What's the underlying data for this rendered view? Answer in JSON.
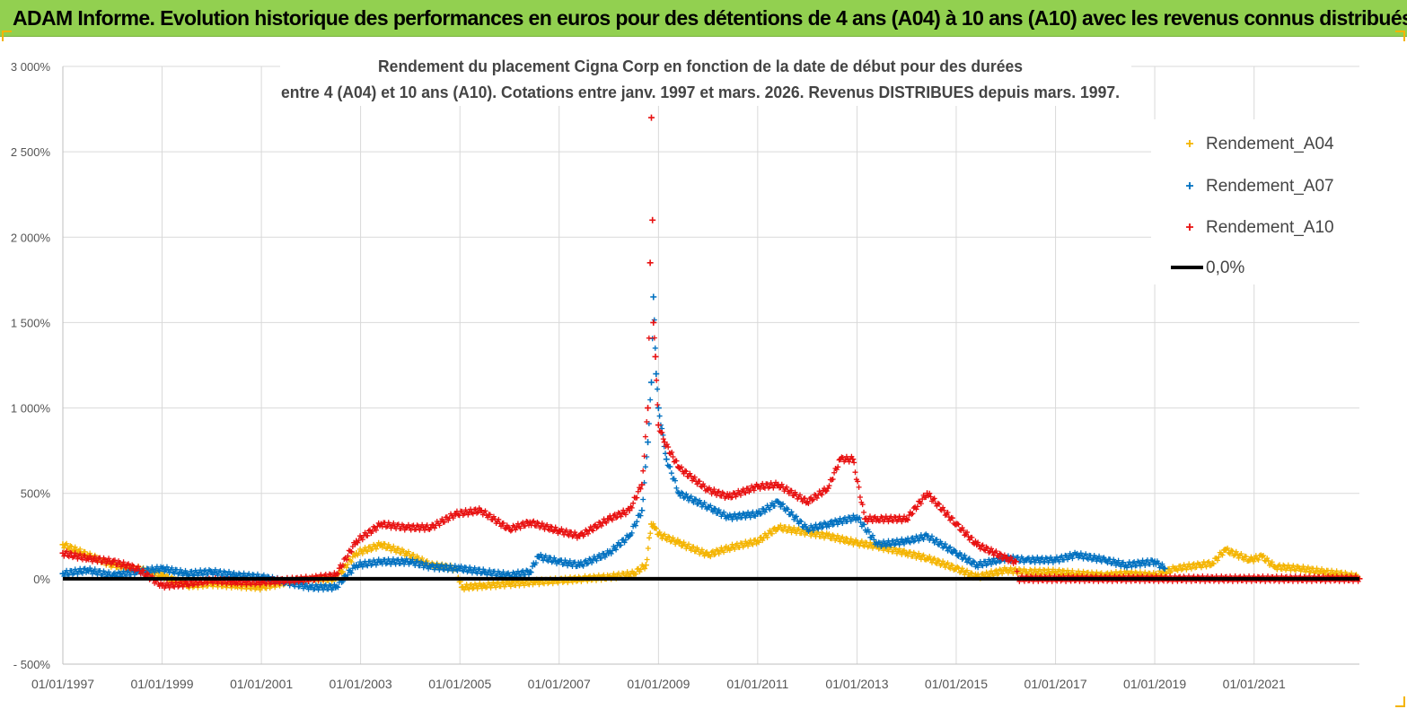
{
  "banner": {
    "title": "ADAM Informe. Evolution historique des performances en euros pour des détentions de 4 ans (A04) à 10 ans (A10) avec les revenus connus distribués"
  },
  "colors": {
    "banner_bg": "#92d050",
    "A04": "#f4b400",
    "A07": "#0070c0",
    "A10": "#e81010",
    "zero_line": "#000000",
    "grid": "#d9d9d9"
  },
  "chart_data": {
    "type": "scatter",
    "title_lines": [
      "Rendement du placement Cigna Corp en fonction de la date de début pour des durées",
      "entre 4 (A04) et 10 ans (A10). Cotations entre janv. 1997 et mars. 2026. Revenus DISTRIBUES depuis mars. 1997."
    ],
    "x_type": "date",
    "x_range": [
      "1997-01-01",
      "2023-02-15"
    ],
    "x_ticks": [
      "01/01/1997",
      "01/01/1999",
      "01/01/2001",
      "01/01/2003",
      "01/01/2005",
      "01/01/2007",
      "01/01/2009",
      "01/01/2011",
      "01/01/2013",
      "01/01/2015",
      "01/01/2017",
      "01/01/2019",
      "01/01/2021"
    ],
    "y_range": [
      -500,
      3000
    ],
    "y_ticks": [
      -500,
      0,
      500,
      1000,
      1500,
      2000,
      2500,
      3000
    ],
    "y_tick_labels": [
      "- 500%",
      "0%",
      "500%",
      "1 000%",
      "1 500%",
      "2 000%",
      "2 500%",
      "3 000%"
    ],
    "y_unit": "%",
    "grid": "vertical and horizontal",
    "legend_position": "top-right",
    "series": [
      {
        "name": "Rendement_A04",
        "marker": "plus",
        "color": "#f4b400",
        "x": [
          "1997-01-01",
          "1997-07-01",
          "1998-01-01",
          "1998-07-01",
          "1999-01-01",
          "1999-07-01",
          "2000-01-01",
          "2000-07-01",
          "2001-01-01",
          "2001-07-01",
          "2002-01-01",
          "2002-07-01",
          "2002-12-01",
          "2003-06-01",
          "2003-12-01",
          "2004-06-01",
          "2004-12-01",
          "2005-01-15",
          "2005-07-01",
          "2006-01-01",
          "2006-07-01",
          "2007-01-01",
          "2007-07-01",
          "2008-01-01",
          "2008-07-01",
          "2008-10-01",
          "2008-11-10",
          "2008-12-01",
          "2009-01-01",
          "2009-06-01",
          "2010-01-01",
          "2010-06-01",
          "2011-01-01",
          "2011-06-01",
          "2012-01-01",
          "2012-06-01",
          "2013-01-01",
          "2013-06-01",
          "2014-01-01",
          "2014-06-01",
          "2015-01-01",
          "2015-06-01",
          "2016-01-01",
          "2016-06-01",
          "2017-01-01",
          "2017-06-01",
          "2018-01-01",
          "2018-06-01",
          "2019-01-01",
          "2019-06-01",
          "2019-12-01",
          "2020-03-01",
          "2020-06-01",
          "2020-12-01",
          "2021-03-01",
          "2021-06-01",
          "2021-12-01",
          "2022-06-01",
          "2022-12-01",
          "2023-02-01"
        ],
        "values": [
          200,
          140,
          80,
          60,
          20,
          -40,
          -30,
          -40,
          -50,
          -20,
          0,
          0,
          150,
          200,
          150,
          80,
          60,
          -50,
          -40,
          -30,
          -20,
          -10,
          0,
          10,
          30,
          80,
          320,
          300,
          260,
          210,
          140,
          180,
          220,
          300,
          270,
          250,
          210,
          190,
          150,
          120,
          60,
          10,
          50,
          40,
          40,
          30,
          20,
          30,
          20,
          60,
          80,
          90,
          170,
          110,
          130,
          70,
          60,
          40,
          20,
          10
        ]
      },
      {
        "name": "Rendement_A07",
        "marker": "plus",
        "color": "#0070c0",
        "x": [
          "1997-01-01",
          "1997-07-01",
          "1998-01-01",
          "1998-07-01",
          "1999-01-01",
          "1999-07-01",
          "2000-01-01",
          "2000-07-01",
          "2001-01-01",
          "2001-07-01",
          "2002-01-01",
          "2002-07-01",
          "2002-12-01",
          "2003-06-01",
          "2004-01-01",
          "2004-06-01",
          "2005-01-01",
          "2005-07-01",
          "2006-01-01",
          "2006-06-01",
          "2006-08-01",
          "2007-01-01",
          "2007-06-01",
          "2008-01-01",
          "2008-06-01",
          "2008-09-01",
          "2008-10-15",
          "2008-11-10",
          "2008-11-25",
          "2008-12-15",
          "2009-01-01",
          "2009-03-01",
          "2009-06-01",
          "2010-01-01",
          "2010-06-01",
          "2011-01-01",
          "2011-06-01",
          "2012-01-01",
          "2012-06-01",
          "2013-01-01",
          "2013-06-01",
          "2014-01-01",
          "2014-06-01",
          "2015-01-01",
          "2015-06-01",
          "2016-01-01",
          "2016-06-01",
          "2017-01-01",
          "2017-06-01",
          "2018-01-01",
          "2018-06-01",
          "2019-01-01",
          "2019-03-15"
        ],
        "values": [
          30,
          50,
          20,
          40,
          60,
          30,
          40,
          20,
          10,
          -20,
          -50,
          -50,
          80,
          100,
          100,
          70,
          60,
          40,
          20,
          40,
          130,
          100,
          80,
          150,
          250,
          400,
          800,
          1150,
          1650,
          1200,
          1000,
          700,
          500,
          420,
          360,
          380,
          450,
          290,
          320,
          360,
          200,
          220,
          250,
          150,
          80,
          120,
          110,
          110,
          140,
          110,
          80,
          100,
          60
        ]
      },
      {
        "name": "Rendement_A10",
        "marker": "plus",
        "color": "#e81010",
        "x": [
          "1997-01-01",
          "1997-07-01",
          "1998-01-01",
          "1998-07-01",
          "1999-01-01",
          "1999-07-01",
          "2000-01-01",
          "2000-07-01",
          "2001-01-01",
          "2001-07-01",
          "2002-01-01",
          "2002-07-01",
          "2002-12-01",
          "2003-06-01",
          "2003-12-01",
          "2004-06-01",
          "2004-12-01",
          "2005-06-01",
          "2006-01-01",
          "2006-06-01",
          "2007-01-01",
          "2007-06-01",
          "2008-01-01",
          "2008-06-01",
          "2008-09-01",
          "2008-10-15",
          "2008-11-01",
          "2008-11-10",
          "2008-11-18",
          "2008-11-25",
          "2008-12-10",
          "2009-01-01",
          "2009-02-15",
          "2009-06-01",
          "2010-01-01",
          "2010-06-01",
          "2011-01-01",
          "2011-06-01",
          "2012-01-01",
          "2012-06-01",
          "2012-09-01",
          "2012-12-01",
          "2013-03-01",
          "2013-06-01",
          "2014-01-01",
          "2014-06-01",
          "2015-01-01",
          "2015-06-01",
          "2016-01-01",
          "2016-03-15",
          "2016-04-01",
          "2023-02-15"
        ],
        "values": [
          150,
          120,
          100,
          60,
          -40,
          -30,
          -10,
          -20,
          -20,
          -10,
          0,
          20,
          220,
          320,
          300,
          300,
          380,
          400,
          290,
          330,
          280,
          250,
          350,
          400,
          550,
          1000,
          1850,
          2700,
          2100,
          1500,
          1300,
          900,
          800,
          650,
          520,
          480,
          540,
          550,
          450,
          530,
          700,
          700,
          350,
          350,
          350,
          500,
          320,
          200,
          120,
          100,
          0,
          0
        ]
      }
    ],
    "reference_line": {
      "name": "0,0%",
      "value": 0,
      "color": "#000000"
    }
  }
}
